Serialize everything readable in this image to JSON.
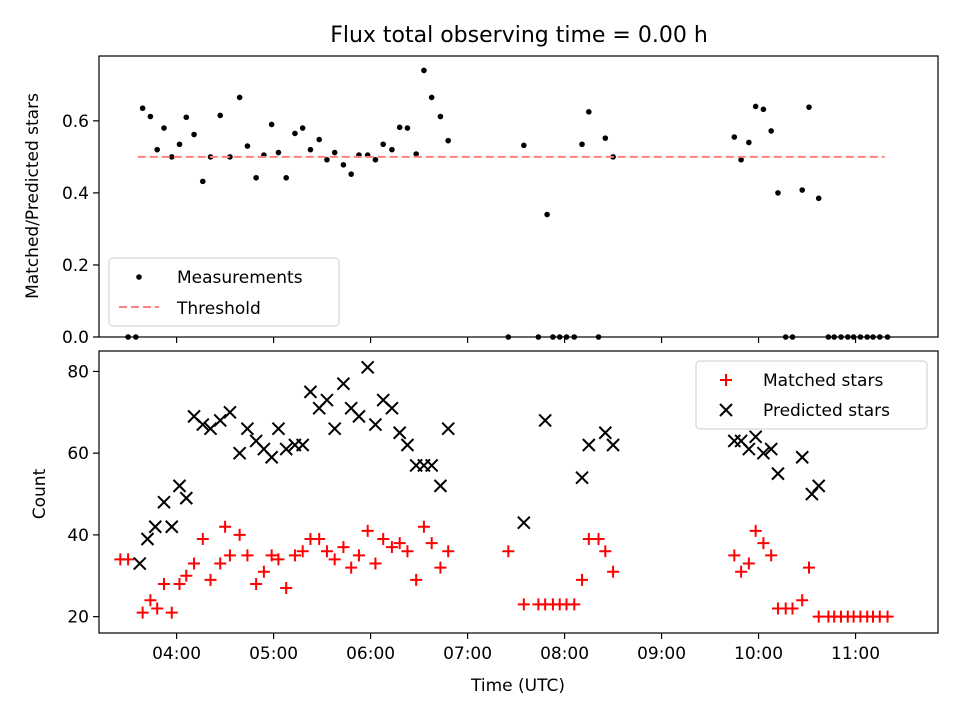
{
  "chart_data": [
    {
      "type": "scatter",
      "title": "Flux total observing time = 0.00 h",
      "xlabel": "",
      "ylabel": "Matched/Predicted stars",
      "xlim": [
        3.2,
        11.85
      ],
      "ylim": [
        0.0,
        0.78
      ],
      "yticks": [
        {
          "value": 0.0,
          "label": "0.0"
        },
        {
          "value": 0.2,
          "label": "0.2"
        },
        {
          "value": 0.4,
          "label": "0.4"
        },
        {
          "value": 0.6,
          "label": "0.6"
        }
      ],
      "grid": false,
      "legend_position": "lower-left",
      "series": [
        {
          "name": "Measurements",
          "marker": "dot",
          "color": "#000000",
          "points": [
            [
              3.5,
              0.0
            ],
            [
              3.58,
              0.0
            ],
            [
              3.65,
              0.635
            ],
            [
              3.73,
              0.612
            ],
            [
              3.8,
              0.52
            ],
            [
              3.87,
              0.58
            ],
            [
              3.95,
              0.5
            ],
            [
              4.03,
              0.535
            ],
            [
              4.1,
              0.61
            ],
            [
              4.18,
              0.562
            ],
            [
              4.27,
              0.432
            ],
            [
              4.35,
              0.5
            ],
            [
              4.45,
              0.615
            ],
            [
              4.55,
              0.5
            ],
            [
              4.65,
              0.665
            ],
            [
              4.73,
              0.53
            ],
            [
              4.82,
              0.442
            ],
            [
              4.9,
              0.505
            ],
            [
              4.98,
              0.59
            ],
            [
              5.05,
              0.512
            ],
            [
              5.13,
              0.442
            ],
            [
              5.22,
              0.565
            ],
            [
              5.3,
              0.58
            ],
            [
              5.38,
              0.52
            ],
            [
              5.47,
              0.548
            ],
            [
              5.55,
              0.492
            ],
            [
              5.63,
              0.512
            ],
            [
              5.72,
              0.478
            ],
            [
              5.8,
              0.452
            ],
            [
              5.88,
              0.505
            ],
            [
              5.97,
              0.505
            ],
            [
              6.05,
              0.492
            ],
            [
              6.13,
              0.535
            ],
            [
              6.22,
              0.52
            ],
            [
              6.3,
              0.582
            ],
            [
              6.38,
              0.58
            ],
            [
              6.47,
              0.508
            ],
            [
              6.55,
              0.74
            ],
            [
              6.63,
              0.665
            ],
            [
              6.72,
              0.612
            ],
            [
              6.8,
              0.545
            ],
            [
              7.42,
              0.0
            ],
            [
              7.58,
              0.532
            ],
            [
              7.73,
              0.0
            ],
            [
              7.82,
              0.34
            ],
            [
              7.88,
              0.0
            ],
            [
              7.95,
              0.0
            ],
            [
              8.02,
              0.0
            ],
            [
              8.1,
              0.0
            ],
            [
              8.18,
              0.535
            ],
            [
              8.25,
              0.625
            ],
            [
              8.35,
              0.0
            ],
            [
              8.42,
              0.552
            ],
            [
              8.5,
              0.5
            ],
            [
              9.75,
              0.555
            ],
            [
              9.82,
              0.492
            ],
            [
              9.9,
              0.54
            ],
            [
              9.97,
              0.64
            ],
            [
              10.05,
              0.632
            ],
            [
              10.13,
              0.572
            ],
            [
              10.2,
              0.4
            ],
            [
              10.28,
              0.0
            ],
            [
              10.35,
              0.0
            ],
            [
              10.45,
              0.408
            ],
            [
              10.52,
              0.638
            ],
            [
              10.62,
              0.385
            ],
            [
              10.72,
              0.0
            ],
            [
              10.78,
              0.0
            ],
            [
              10.85,
              0.0
            ],
            [
              10.92,
              0.0
            ],
            [
              10.98,
              0.0
            ],
            [
              11.05,
              0.0
            ],
            [
              11.12,
              0.0
            ],
            [
              11.18,
              0.0
            ],
            [
              11.25,
              0.0
            ],
            [
              11.33,
              0.0
            ]
          ]
        },
        {
          "name": "Threshold",
          "marker": "dashed-line",
          "color": "#ff8080",
          "points": [
            [
              3.6,
              0.5
            ],
            [
              11.3,
              0.5
            ]
          ]
        }
      ]
    },
    {
      "type": "scatter",
      "title": "",
      "xlabel": "Time (UTC)",
      "ylabel": "Count",
      "xlim": [
        3.2,
        11.85
      ],
      "ylim": [
        16.0,
        85.0
      ],
      "xticks": [
        {
          "value": 4,
          "label": "04:00"
        },
        {
          "value": 5,
          "label": "05:00"
        },
        {
          "value": 6,
          "label": "06:00"
        },
        {
          "value": 7,
          "label": "07:00"
        },
        {
          "value": 8,
          "label": "08:00"
        },
        {
          "value": 9,
          "label": "09:00"
        },
        {
          "value": 10,
          "label": "10:00"
        },
        {
          "value": 11,
          "label": "11:00"
        }
      ],
      "yticks": [
        {
          "value": 20,
          "label": "20"
        },
        {
          "value": 40,
          "label": "40"
        },
        {
          "value": 60,
          "label": "60"
        },
        {
          "value": 80,
          "label": "80"
        }
      ],
      "grid": false,
      "legend_position": "top-right",
      "series": [
        {
          "name": "Matched stars",
          "marker": "plus",
          "color": "#ff0000",
          "points": [
            [
              3.42,
              34
            ],
            [
              3.5,
              34
            ],
            [
              3.65,
              21
            ],
            [
              3.73,
              24
            ],
            [
              3.8,
              22
            ],
            [
              3.87,
              28
            ],
            [
              3.95,
              21
            ],
            [
              4.03,
              28
            ],
            [
              4.1,
              30
            ],
            [
              4.18,
              33
            ],
            [
              4.27,
              39
            ],
            [
              4.35,
              29
            ],
            [
              4.45,
              33
            ],
            [
              4.5,
              42
            ],
            [
              4.55,
              35
            ],
            [
              4.65,
              40
            ],
            [
              4.73,
              35
            ],
            [
              4.82,
              28
            ],
            [
              4.9,
              31
            ],
            [
              4.98,
              35
            ],
            [
              5.05,
              34
            ],
            [
              5.13,
              27
            ],
            [
              5.22,
              35
            ],
            [
              5.3,
              36
            ],
            [
              5.38,
              39
            ],
            [
              5.47,
              39
            ],
            [
              5.55,
              36
            ],
            [
              5.63,
              34
            ],
            [
              5.72,
              37
            ],
            [
              5.8,
              32
            ],
            [
              5.88,
              35
            ],
            [
              5.97,
              41
            ],
            [
              6.05,
              33
            ],
            [
              6.13,
              39
            ],
            [
              6.22,
              37
            ],
            [
              6.3,
              38
            ],
            [
              6.38,
              36
            ],
            [
              6.47,
              29
            ],
            [
              6.55,
              42
            ],
            [
              6.63,
              38
            ],
            [
              6.72,
              32
            ],
            [
              6.8,
              36
            ],
            [
              7.42,
              36
            ],
            [
              7.58,
              23
            ],
            [
              7.73,
              23
            ],
            [
              7.8,
              23
            ],
            [
              7.88,
              23
            ],
            [
              7.95,
              23
            ],
            [
              8.02,
              23
            ],
            [
              8.1,
              23
            ],
            [
              8.18,
              29
            ],
            [
              8.25,
              39
            ],
            [
              8.35,
              39
            ],
            [
              8.42,
              36
            ],
            [
              8.5,
              31
            ],
            [
              9.75,
              35
            ],
            [
              9.82,
              31
            ],
            [
              9.9,
              33
            ],
            [
              9.97,
              41
            ],
            [
              10.05,
              38
            ],
            [
              10.13,
              35
            ],
            [
              10.2,
              22
            ],
            [
              10.28,
              22
            ],
            [
              10.35,
              22
            ],
            [
              10.45,
              24
            ],
            [
              10.52,
              32
            ],
            [
              10.62,
              20
            ],
            [
              10.72,
              20
            ],
            [
              10.78,
              20
            ],
            [
              10.85,
              20
            ],
            [
              10.92,
              20
            ],
            [
              10.98,
              20
            ],
            [
              11.05,
              20
            ],
            [
              11.12,
              20
            ],
            [
              11.18,
              20
            ],
            [
              11.25,
              20
            ],
            [
              11.33,
              20
            ]
          ]
        },
        {
          "name": "Predicted stars",
          "marker": "x",
          "color": "#000000",
          "points": [
            [
              3.62,
              33
            ],
            [
              3.7,
              39
            ],
            [
              3.78,
              42
            ],
            [
              3.87,
              48
            ],
            [
              3.95,
              42
            ],
            [
              4.03,
              52
            ],
            [
              4.1,
              49
            ],
            [
              4.18,
              69
            ],
            [
              4.27,
              67
            ],
            [
              4.35,
              66
            ],
            [
              4.45,
              68
            ],
            [
              4.55,
              70
            ],
            [
              4.65,
              60
            ],
            [
              4.73,
              66
            ],
            [
              4.82,
              63
            ],
            [
              4.9,
              61
            ],
            [
              4.98,
              59
            ],
            [
              5.05,
              66
            ],
            [
              5.13,
              61
            ],
            [
              5.22,
              62
            ],
            [
              5.3,
              62
            ],
            [
              5.38,
              75
            ],
            [
              5.47,
              71
            ],
            [
              5.55,
              73
            ],
            [
              5.63,
              66
            ],
            [
              5.72,
              77
            ],
            [
              5.8,
              71
            ],
            [
              5.88,
              69
            ],
            [
              5.97,
              81
            ],
            [
              6.05,
              67
            ],
            [
              6.13,
              73
            ],
            [
              6.22,
              71
            ],
            [
              6.3,
              65
            ],
            [
              6.38,
              62
            ],
            [
              6.47,
              57
            ],
            [
              6.55,
              57
            ],
            [
              6.63,
              57
            ],
            [
              6.72,
              52
            ],
            [
              6.8,
              66
            ],
            [
              7.58,
              43
            ],
            [
              7.8,
              68
            ],
            [
              8.18,
              54
            ],
            [
              8.25,
              62
            ],
            [
              8.42,
              65
            ],
            [
              8.5,
              62
            ],
            [
              9.75,
              63
            ],
            [
              9.82,
              63
            ],
            [
              9.9,
              61
            ],
            [
              9.97,
              64
            ],
            [
              10.05,
              60
            ],
            [
              10.13,
              61
            ],
            [
              10.2,
              55
            ],
            [
              10.45,
              59
            ],
            [
              10.55,
              50
            ],
            [
              10.62,
              52
            ]
          ]
        }
      ]
    }
  ]
}
